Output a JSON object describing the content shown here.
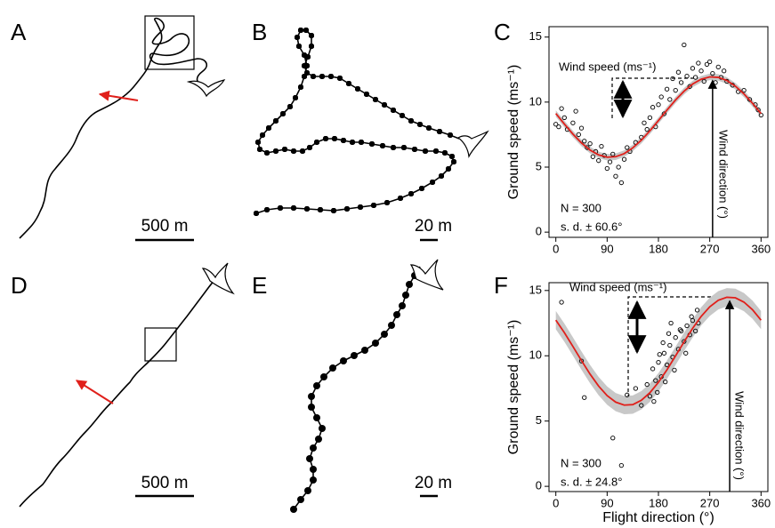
{
  "panels": {
    "labels": [
      "A",
      "B",
      "C",
      "D",
      "E",
      "F"
    ],
    "scale_bars": [
      "500 m",
      "20 m",
      "500 m",
      "20 m"
    ]
  },
  "chart_data": [
    {
      "type": "scatter",
      "y_label": "Ground speed (ms⁻¹)",
      "annotations": [
        "Wind speed (ms⁻¹)",
        "N = 300",
        "s. d. ± 60.6°",
        "Wind direction (°)"
      ],
      "xlim": [
        -12,
        372
      ],
      "ylim": [
        -0.4,
        15.8
      ],
      "xticks": [
        0,
        90,
        180,
        270,
        360
      ],
      "yticks": [
        0,
        5,
        10,
        15
      ],
      "x": [
        0,
        5,
        10,
        15,
        20,
        30,
        35,
        40,
        45,
        50,
        55,
        60,
        65,
        70,
        75,
        80,
        85,
        90,
        95,
        100,
        105,
        110,
        115,
        120,
        125,
        130,
        140,
        150,
        155,
        160,
        165,
        170,
        175,
        180,
        185,
        190,
        195,
        200,
        205,
        210,
        215,
        220,
        225,
        230,
        235,
        240,
        245,
        250,
        255,
        260,
        265,
        270,
        275,
        280,
        285,
        290,
        295,
        300,
        310,
        320,
        330,
        340,
        350,
        355,
        360
      ],
      "values": [
        8.3,
        8.1,
        9.5,
        8.8,
        7.9,
        8.4,
        9.3,
        7.5,
        8.0,
        7.0,
        6.5,
        6.8,
        5.8,
        6.2,
        5.5,
        6.6,
        5.9,
        4.9,
        5.4,
        6.0,
        4.3,
        5.0,
        3.8,
        5.6,
        6.5,
        6.2,
        6.9,
        7.3,
        8.4,
        7.9,
        8.8,
        9.6,
        8.1,
        9.8,
        10.4,
        9.1,
        11.0,
        10.2,
        11.8,
        10.9,
        12.3,
        11.5,
        14.4,
        12.0,
        11.2,
        12.6,
        11.9,
        13.0,
        12.4,
        11.6,
        12.9,
        13.1,
        12.2,
        11.5,
        12.7,
        11.9,
        12.4,
        11.6,
        11.3,
        10.8,
        10.9,
        10.2,
        9.8,
        9.4,
        9.0
      ],
      "fit": {
        "color": "#e0201b",
        "x": [
          0,
          15,
          30,
          45,
          60,
          75,
          90,
          105,
          120,
          135,
          150,
          165,
          180,
          195,
          210,
          225,
          240,
          255,
          270,
          285,
          300,
          315,
          330,
          345,
          360
        ],
        "values": [
          9.12,
          8.31,
          7.54,
          6.86,
          6.31,
          5.94,
          5.76,
          5.8,
          6.04,
          6.48,
          7.07,
          7.79,
          8.58,
          9.39,
          10.16,
          10.84,
          11.39,
          11.76,
          11.94,
          11.9,
          11.66,
          11.22,
          10.63,
          9.91,
          9.12
        ]
      },
      "band": 0.25,
      "wind_direction": 275
    },
    {
      "type": "scatter",
      "y_label": "Ground speed (ms⁻¹)",
      "x_label": "Flight direction (°)",
      "annotations": [
        "Wind speed (ms⁻¹)",
        "N = 300",
        "s. d. ± 24.8°",
        "Wind direction (°)"
      ],
      "xlim": [
        -12,
        372
      ],
      "ylim": [
        -0.4,
        15.6
      ],
      "xticks": [
        0,
        90,
        180,
        270,
        360
      ],
      "yticks": [
        0,
        5,
        10,
        15
      ],
      "x": [
        10,
        45,
        50,
        100,
        115,
        125,
        140,
        150,
        160,
        165,
        170,
        175,
        180,
        185,
        190,
        195,
        200,
        205,
        210,
        215,
        220,
        225,
        230,
        235,
        240,
        245,
        250,
        178,
        188,
        198,
        208,
        218,
        228,
        238,
        248,
        172,
        182,
        192,
        202
      ],
      "values": [
        14.1,
        9.6,
        6.8,
        3.7,
        1.6,
        7.0,
        7.5,
        6.2,
        7.8,
        6.9,
        9.0,
        8.1,
        9.5,
        8.4,
        10.2,
        9.3,
        10.8,
        9.9,
        11.4,
        10.5,
        11.9,
        11.1,
        12.3,
        11.6,
        12.7,
        11.9,
        12.5,
        7.2,
        11.0,
        11.7,
        8.9,
        12.0,
        10.2,
        13.0,
        13.5,
        6.5,
        10.1,
        8.0,
        12.5
      ],
      "fit": {
        "color": "#e0201b",
        "x": [
          0,
          15,
          30,
          45,
          60,
          75,
          90,
          105,
          120,
          135,
          150,
          165,
          180,
          195,
          210,
          225,
          240,
          255,
          270,
          285,
          300,
          315,
          330,
          345,
          360
        ],
        "values": [
          12.73,
          11.77,
          10.71,
          9.63,
          8.6,
          7.68,
          6.95,
          6.45,
          6.22,
          6.26,
          6.59,
          7.17,
          7.97,
          8.93,
          9.99,
          11.07,
          12.1,
          13.02,
          13.75,
          14.25,
          14.48,
          14.44,
          14.11,
          13.53,
          12.73
        ]
      },
      "band": 0.7,
      "wind_direction": 305
    }
  ]
}
